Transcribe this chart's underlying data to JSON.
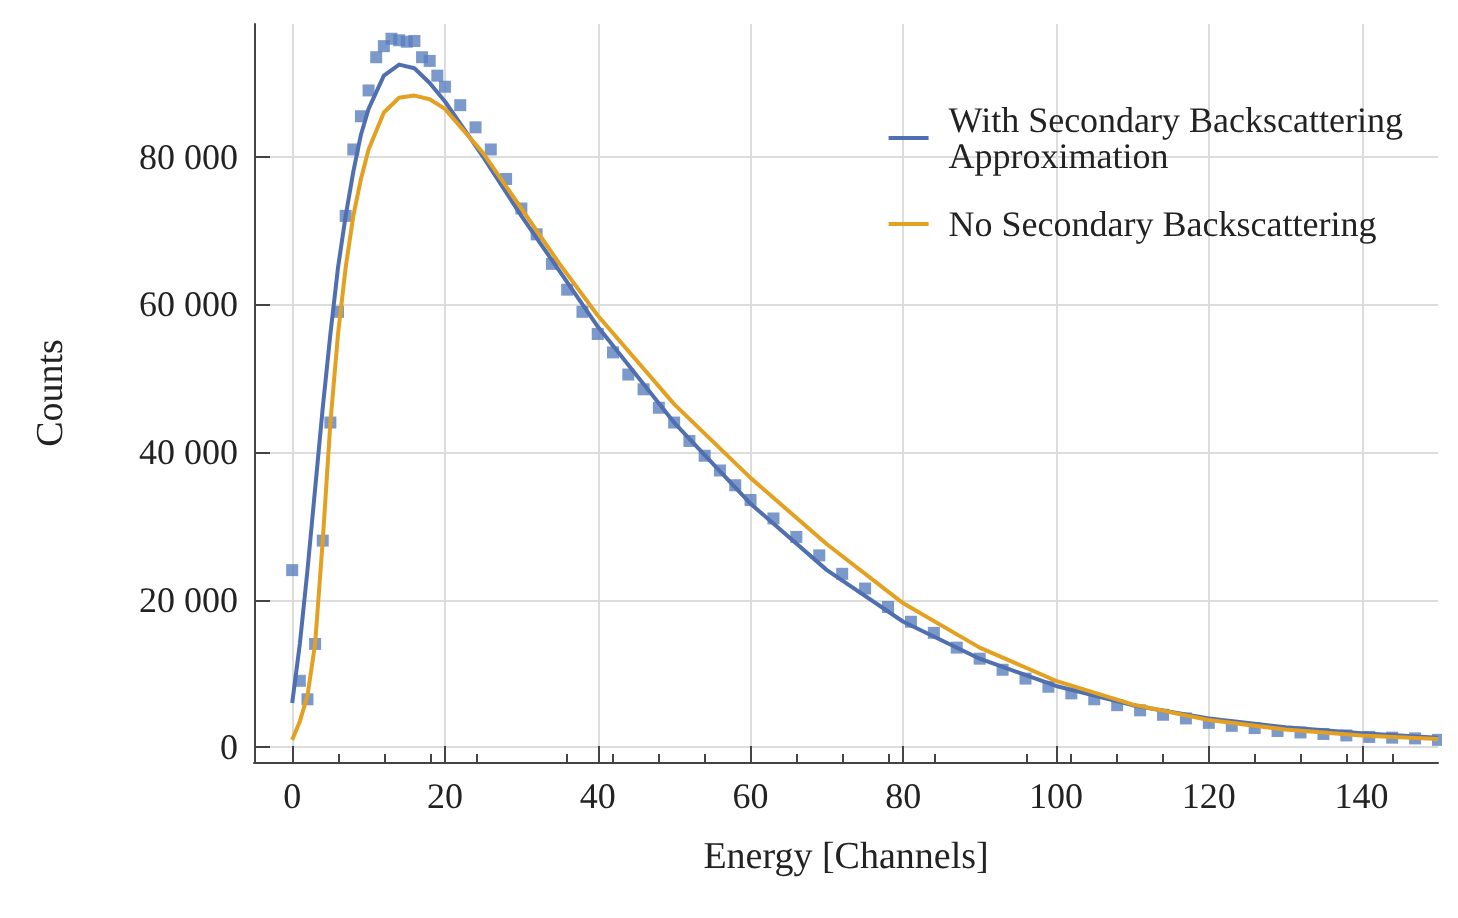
{
  "chart_data": {
    "type": "scatter",
    "xlabel": "Energy [Channels]",
    "ylabel": "Counts",
    "xlim": [
      -5,
      150
    ],
    "ylim": [
      -2000,
      98000
    ],
    "xticks": [
      0,
      20,
      40,
      60,
      80,
      100,
      120,
      140
    ],
    "yticks": [
      0,
      {
        "value": 20000,
        "label": "20 000"
      },
      {
        "value": 40000,
        "label": "40 000"
      },
      {
        "value": 60000,
        "label": "60 000"
      },
      {
        "value": 80000,
        "label": "80 000"
      }
    ],
    "grid": true,
    "legend": "top right",
    "series": [
      {
        "marker": "square",
        "color": "#5b7fbf",
        "x": [
          0,
          1,
          2,
          3,
          4,
          5,
          6,
          7,
          8,
          9,
          10,
          11,
          12,
          13,
          14,
          15,
          16,
          17,
          18,
          19,
          20,
          22,
          24,
          26,
          28,
          30,
          32,
          34,
          36,
          38,
          40,
          42,
          44,
          46,
          48,
          50,
          52,
          54,
          56,
          58,
          60,
          63,
          66,
          69,
          72,
          75,
          78,
          81,
          84,
          87,
          90,
          93,
          96,
          99,
          102,
          105,
          108,
          111,
          114,
          117,
          120,
          123,
          126,
          129,
          132,
          135,
          138,
          141,
          144,
          147,
          150
        ],
        "values": [
          24000,
          9000,
          6500,
          14000,
          28000,
          44000,
          59000,
          72000,
          81000,
          85500,
          89000,
          93500,
          95000,
          96000,
          95800,
          95600,
          95700,
          93500,
          93000,
          91000,
          89500,
          87000,
          84000,
          81000,
          77000,
          73000,
          69500,
          65500,
          62000,
          59000,
          56000,
          53500,
          50500,
          48500,
          46000,
          44000,
          41500,
          39500,
          37500,
          35500,
          33500,
          31000,
          28500,
          26000,
          23500,
          21500,
          19000,
          17000,
          15500,
          13500,
          12000,
          10500,
          9300,
          8200,
          7300,
          6500,
          5700,
          5000,
          4400,
          3900,
          3300,
          2900,
          2600,
          2200,
          2000,
          1800,
          1600,
          1400,
          1300,
          1200,
          1000
        ]
      },
      {
        "type": "line",
        "name": "With Secondary Backscattering Approximation",
        "color": "#4f6fb0",
        "marker": "none",
        "x": [
          0,
          1,
          2,
          3,
          4,
          5,
          6,
          7,
          8,
          9,
          10,
          12,
          14,
          16,
          18,
          20,
          25,
          30,
          35,
          40,
          50,
          60,
          70,
          80,
          90,
          100,
          110,
          120,
          130,
          140,
          150
        ],
        "values": [
          6000,
          14000,
          24000,
          35000,
          46000,
          56000,
          65000,
          72000,
          78000,
          83000,
          86500,
          91000,
          92500,
          92000,
          90000,
          87500,
          80000,
          72000,
          64500,
          57000,
          44000,
          33000,
          24000,
          17000,
          12000,
          8300,
          5700,
          3900,
          2700,
          1900,
          1300
        ]
      },
      {
        "type": "line",
        "name": "No Secondary Backscattering",
        "color": "#e3a021",
        "marker": "none",
        "x": [
          0,
          1,
          2,
          3,
          4,
          5,
          6,
          7,
          8,
          9,
          10,
          12,
          14,
          16,
          18,
          20,
          25,
          30,
          35,
          40,
          50,
          60,
          70,
          80,
          90,
          100,
          110,
          120,
          130,
          140,
          150
        ],
        "values": [
          1000,
          3500,
          7000,
          14000,
          28000,
          44000,
          56000,
          65000,
          72000,
          77000,
          81000,
          86000,
          88000,
          88300,
          87800,
          86500,
          80500,
          73000,
          65500,
          58500,
          46500,
          36500,
          27500,
          19500,
          13500,
          9000,
          5800,
          3700,
          2400,
          1600,
          1100
        ]
      }
    ]
  }
}
